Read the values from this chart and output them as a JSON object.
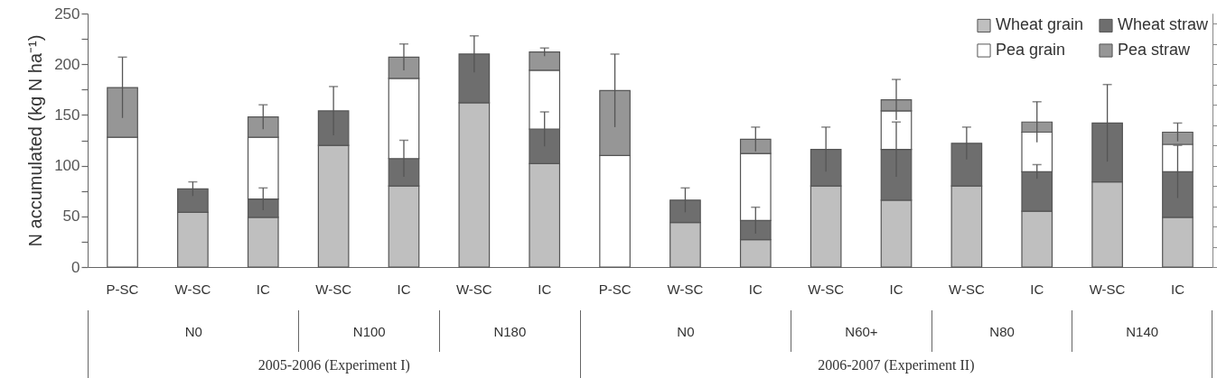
{
  "chart_data": {
    "type": "bar",
    "stacked": true,
    "ylabel": "N accumulated (kg N ha⁻¹)",
    "categories": [
      "P-SC",
      "W-SC",
      "IC",
      "W-SC",
      "IC",
      "W-SC",
      "IC",
      "P-SC",
      "W-SC",
      "IC",
      "W-SC",
      "IC",
      "W-SC",
      "IC",
      "W-SC",
      "IC"
    ],
    "annotations": [
      "N0",
      "N100",
      "N180",
      "N0",
      "N60+",
      "N80",
      "N140",
      "2005-2006 (Experiment I)",
      "2006-2007 (Experiment II)"
    ],
    "series": [
      {
        "name": "Wheat grain",
        "color": "#bfbfbf",
        "values": [
          null,
          54,
          49,
          120,
          80,
          162,
          102,
          null,
          44,
          27,
          80,
          66,
          80,
          55,
          84,
          49
        ],
        "errors": [
          null,
          null,
          null,
          null,
          null,
          null,
          null,
          null,
          null,
          null,
          null,
          null,
          null,
          null,
          null,
          null
        ]
      },
      {
        "name": "Wheat straw",
        "color": "#6e6e6e",
        "values": [
          null,
          23,
          18,
          34,
          27,
          48,
          34,
          null,
          22,
          19,
          36,
          50,
          42,
          39,
          58,
          45
        ],
        "errors": [
          null,
          7,
          11,
          24,
          18,
          18,
          17,
          null,
          12,
          13,
          22,
          27,
          16,
          7,
          38,
          26
        ]
      },
      {
        "name": "Pea grain",
        "color": "#ffffff",
        "values": [
          128,
          null,
          61,
          null,
          79,
          null,
          58,
          110,
          null,
          66,
          null,
          38,
          null,
          39,
          null,
          27
        ],
        "errors": [
          null,
          null,
          null,
          null,
          null,
          null,
          null,
          null,
          null,
          null,
          null,
          null,
          null,
          null,
          null,
          null
        ]
      },
      {
        "name": "Pea straw",
        "color": "#969696",
        "values": [
          49,
          null,
          20,
          null,
          21,
          null,
          18,
          64,
          null,
          14,
          null,
          11,
          null,
          10,
          null,
          12
        ],
        "errors": [
          30,
          null,
          12,
          null,
          13,
          null,
          4,
          36,
          null,
          12,
          null,
          20,
          null,
          20,
          null,
          9
        ]
      }
    ],
    "ylim": [
      0,
      250
    ],
    "yticks": [
      0,
      {
        "value": 25,
        "label": null
      },
      50,
      {
        "value": 75,
        "label": null
      },
      100,
      {
        "value": 125,
        "label": null
      },
      150,
      {
        "value": 175,
        "label": null
      },
      200,
      {
        "value": 225,
        "label": null
      },
      250
    ],
    "grid": false,
    "legend": "top right"
  }
}
